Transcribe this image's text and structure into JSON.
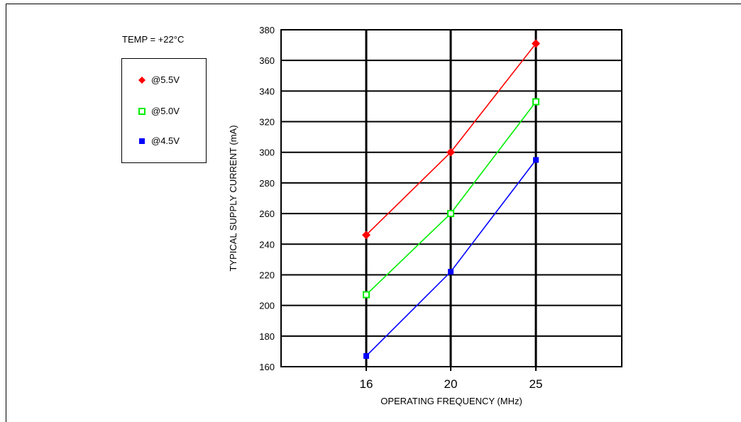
{
  "annotation": "TEMP = +22°C",
  "legend": {
    "items": [
      "@5.5V",
      "@5.0V",
      "@4.5V"
    ]
  },
  "colors": {
    "series_5_5": "#ff0000",
    "series_5_0": "#00ee00",
    "series_4_5": "#0000ff",
    "grid": "#000000"
  },
  "chart_data": {
    "type": "line",
    "xlabel": "OPERATING FREQUENCY (MHz)",
    "ylabel": "TYPICAL SUPPLY CURRENT (mA)",
    "categories": [
      "16",
      "20",
      "25"
    ],
    "ylim": [
      160,
      380
    ],
    "yticks": [
      160,
      180,
      200,
      220,
      240,
      260,
      280,
      300,
      320,
      340,
      360,
      380
    ],
    "grid": true,
    "legend_position": "top-left (outside plot)",
    "series": [
      {
        "name": "@5.5V",
        "marker": "filled-diamond",
        "color": "#ff0000",
        "values": [
          246,
          300,
          371
        ]
      },
      {
        "name": "@5.0V",
        "marker": "open-square",
        "color": "#00ee00",
        "values": [
          207,
          260,
          333
        ]
      },
      {
        "name": "@4.5V",
        "marker": "filled-square",
        "color": "#0000ff",
        "values": [
          167,
          222,
          295
        ]
      }
    ]
  }
}
